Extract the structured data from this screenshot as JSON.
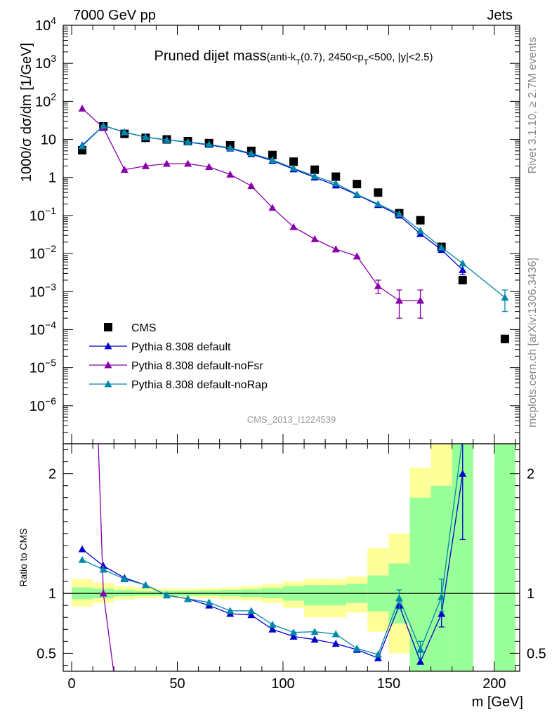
{
  "header": {
    "left": "7000 GeV pp",
    "right": "Jets"
  },
  "side_labels": {
    "rivet": "Rivet 3.1.10, ≥ 2.7M events",
    "mcplots": "mcplots.cern.ch [arXiv:1306.3436]"
  },
  "watermark": "CMS_2013_I1224539",
  "colors": {
    "cms": "#000000",
    "default": "#0000cc",
    "noFsr": "#8800aa",
    "noRap": "#0088aa",
    "band_yellow": "#ffff99",
    "band_green": "#99ff99"
  },
  "chart_data": [
    {
      "type": "scatter",
      "title": "Pruned dijet mass",
      "title_sub": "(anti-k",
      "title_sub_T1": "T",
      "title_sub_mid": "(0.7), 2450<p",
      "title_sub_T2": "T",
      "title_sub_end": "<500, |y|<2.5)",
      "ylabel": "1000/σ dσ/dm [1/GeV]",
      "yscale": "log",
      "ylim": [
        1e-07,
        10000.0
      ],
      "xlim": [
        -4,
        212
      ],
      "y_ticks": [
        {
          "v": 10000.0,
          "label": "10",
          "exp": "4"
        },
        {
          "v": 1000.0,
          "label": "10",
          "exp": "3"
        },
        {
          "v": 100.0,
          "label": "10",
          "exp": "2"
        },
        {
          "v": 10,
          "label": "10",
          "exp": ""
        },
        {
          "v": 1,
          "label": "1",
          "exp": ""
        },
        {
          "v": 0.1,
          "label": "10",
          "exp": "−1"
        },
        {
          "v": 0.01,
          "label": "10",
          "exp": "−2"
        },
        {
          "v": 0.001,
          "label": "10",
          "exp": "−3"
        },
        {
          "v": 0.0001,
          "label": "10",
          "exp": "−4"
        },
        {
          "v": 1e-05,
          "label": "10",
          "exp": "−5"
        },
        {
          "v": 1e-06,
          "label": "10",
          "exp": "−6"
        }
      ],
      "legend": [
        {
          "name": "CMS",
          "marker": "square",
          "color": "#000000"
        },
        {
          "name": "Pythia 8.308 default",
          "marker": "triangle",
          "color": "#0000cc"
        },
        {
          "name": "Pythia 8.308 default-noFsr",
          "marker": "triangle",
          "color": "#8800aa"
        },
        {
          "name": "Pythia 8.308 default-noRap",
          "marker": "triangle",
          "color": "#0088aa"
        }
      ],
      "series": [
        {
          "name": "CMS",
          "style": "square",
          "color": "#000000",
          "points": [
            [
              5,
              5.2
            ],
            [
              15,
              22
            ],
            [
              25,
              14
            ],
            [
              35,
              11
            ],
            [
              45,
              10
            ],
            [
              55,
              9
            ],
            [
              65,
              8
            ],
            [
              75,
              7
            ],
            [
              85,
              5
            ],
            [
              95,
              3.9
            ],
            [
              105,
              2.6
            ],
            [
              115,
              1.6
            ],
            [
              125,
              1.05
            ],
            [
              135,
              0.67
            ],
            [
              145,
              0.4
            ],
            [
              155,
              0.115
            ],
            [
              165,
              0.075
            ],
            [
              175,
              0.015
            ],
            [
              185,
              0.002
            ],
            [
              205,
              5.7e-05
            ]
          ]
        },
        {
          "name": "Pythia 8.308 default",
          "style": "triangle",
          "color": "#0000cc",
          "points": [
            [
              5,
              7
            ],
            [
              15,
              23
            ],
            [
              25,
              15.5
            ],
            [
              35,
              11.5
            ],
            [
              45,
              9.7
            ],
            [
              55,
              8.5
            ],
            [
              65,
              7.2
            ],
            [
              75,
              5.8
            ],
            [
              85,
              4.1
            ],
            [
              95,
              2.75
            ],
            [
              105,
              1.65
            ],
            [
              115,
              1.0
            ],
            [
              125,
              0.62
            ],
            [
              135,
              0.35
            ],
            [
              145,
              0.19
            ],
            [
              155,
              0.1
            ],
            [
              165,
              0.033
            ],
            [
              175,
              0.0125
            ],
            [
              185,
              0.0037
            ]
          ],
          "errors": [
            [
              185,
              0.0028,
              0.0047
            ]
          ]
        },
        {
          "name": "Pythia 8.308 default-noFsr",
          "style": "triangle",
          "color": "#8800aa",
          "points": [
            [
              5,
              65
            ],
            [
              15,
              20
            ],
            [
              25,
              1.6
            ],
            [
              35,
              2.0
            ],
            [
              45,
              2.3
            ],
            [
              55,
              2.3
            ],
            [
              65,
              1.9
            ],
            [
              75,
              1.2
            ],
            [
              85,
              0.6
            ],
            [
              95,
              0.16
            ],
            [
              105,
              0.05
            ],
            [
              115,
              0.024
            ],
            [
              125,
              0.013
            ],
            [
              135,
              0.0085
            ],
            [
              145,
              0.0014
            ],
            [
              155,
              0.00058
            ],
            [
              165,
              0.00058
            ]
          ],
          "errors": [
            [
              145,
              0.0009,
              0.002
            ],
            [
              155,
              0.0002,
              0.0011
            ],
            [
              165,
              0.0002,
              0.0011
            ]
          ]
        },
        {
          "name": "Pythia 8.308 default-noRap",
          "style": "triangle",
          "color": "#0088aa",
          "points": [
            [
              5,
              6.7
            ],
            [
              15,
              23
            ],
            [
              25,
              15.5
            ],
            [
              35,
              11.5
            ],
            [
              45,
              9.7
            ],
            [
              55,
              8.6
            ],
            [
              65,
              7.4
            ],
            [
              75,
              6.0
            ],
            [
              85,
              4.3
            ],
            [
              95,
              2.9
            ],
            [
              105,
              1.75
            ],
            [
              115,
              1.08
            ],
            [
              125,
              0.7
            ],
            [
              135,
              0.36
            ],
            [
              145,
              0.2
            ],
            [
              155,
              0.11
            ],
            [
              165,
              0.04
            ],
            [
              175,
              0.0145
            ],
            [
              185,
              0.0055
            ],
            [
              205,
              0.0007
            ]
          ],
          "errors": [
            [
              205,
              0.0003,
              0.0011
            ]
          ]
        }
      ]
    },
    {
      "type": "line",
      "ylabel": "Ratio to CMS",
      "xlabel": "m [GeV]",
      "ylim": [
        0.35,
        2.25
      ],
      "xlim": [
        -4,
        212
      ],
      "x_ticks": [
        0,
        50,
        100,
        150,
        200
      ],
      "y_ticks": [
        0.5,
        1,
        2
      ],
      "bands": [
        {
          "x0": 0,
          "x1": 10,
          "y_lo": 0.89,
          "y_hi": 1.12,
          "g_lo": 0.95,
          "g_hi": 1.05
        },
        {
          "x0": 10,
          "x1": 20,
          "y_lo": 0.92,
          "y_hi": 1.09,
          "g_lo": 0.96,
          "g_hi": 1.04
        },
        {
          "x0": 20,
          "x1": 30,
          "y_lo": 0.95,
          "y_hi": 1.06,
          "g_lo": 0.975,
          "g_hi": 1.03
        },
        {
          "x0": 30,
          "x1": 40,
          "y_lo": 0.96,
          "y_hi": 1.05,
          "g_lo": 0.98,
          "g_hi": 1.02
        },
        {
          "x0": 40,
          "x1": 50,
          "y_lo": 0.965,
          "y_hi": 1.04,
          "g_lo": 0.98,
          "g_hi": 1.02
        },
        {
          "x0": 50,
          "x1": 60,
          "y_lo": 0.965,
          "y_hi": 1.04,
          "g_lo": 0.98,
          "g_hi": 1.02
        },
        {
          "x0": 60,
          "x1": 70,
          "y_lo": 0.96,
          "y_hi": 1.045,
          "g_lo": 0.98,
          "g_hi": 1.025
        },
        {
          "x0": 70,
          "x1": 80,
          "y_lo": 0.95,
          "y_hi": 1.05,
          "g_lo": 0.975,
          "g_hi": 1.03
        },
        {
          "x0": 80,
          "x1": 90,
          "y_lo": 0.94,
          "y_hi": 1.06,
          "g_lo": 0.97,
          "g_hi": 1.035
        },
        {
          "x0": 90,
          "x1": 100,
          "y_lo": 0.92,
          "y_hi": 1.08,
          "g_lo": 0.96,
          "g_hi": 1.045
        },
        {
          "x0": 100,
          "x1": 110,
          "y_lo": 0.88,
          "y_hi": 1.1,
          "g_lo": 0.94,
          "g_hi": 1.06
        },
        {
          "x0": 110,
          "x1": 120,
          "y_lo": 0.8,
          "y_hi": 1.12,
          "g_lo": 0.9,
          "g_hi": 1.07
        },
        {
          "x0": 120,
          "x1": 130,
          "y_lo": 0.8,
          "y_hi": 1.12,
          "g_lo": 0.9,
          "g_hi": 1.07
        },
        {
          "x0": 130,
          "x1": 140,
          "y_lo": 0.84,
          "y_hi": 1.14,
          "g_lo": 0.92,
          "g_hi": 1.08
        },
        {
          "x0": 140,
          "x1": 150,
          "y_lo": 0.68,
          "y_hi": 1.38,
          "g_lo": 0.85,
          "g_hi": 1.15
        },
        {
          "x0": 150,
          "x1": 160,
          "y_lo": 0.5,
          "y_hi": 1.5,
          "g_lo": 0.75,
          "g_hi": 1.25
        },
        {
          "x0": 160,
          "x1": 170,
          "y_lo": 0.3,
          "y_hi": 2.05,
          "g_lo": 0.3,
          "g_hi": 1.8
        },
        {
          "x0": 170,
          "x1": 180,
          "y_lo": 0.3,
          "y_hi": 2.3,
          "g_lo": 0.3,
          "g_hi": 1.9
        },
        {
          "x0": 180,
          "x1": 190,
          "y_lo": 0.3,
          "y_hi": 2.3,
          "g_lo": 0.3,
          "g_hi": 2.3
        },
        {
          "x0": 200,
          "x1": 210,
          "y_lo": 0.3,
          "y_hi": 2.3,
          "g_lo": 0.3,
          "g_hi": 2.3
        }
      ],
      "series": [
        {
          "name": "Pythia 8.308 default",
          "color": "#0000cc",
          "points": [
            [
              5,
              1.37
            ],
            [
              15,
              1.23
            ],
            [
              25,
              1.13
            ],
            [
              35,
              1.07
            ],
            [
              45,
              0.985
            ],
            [
              55,
              0.955
            ],
            [
              65,
              0.9
            ],
            [
              75,
              0.83
            ],
            [
              85,
              0.82
            ],
            [
              95,
              0.7
            ],
            [
              105,
              0.64
            ],
            [
              115,
              0.615
            ],
            [
              125,
              0.58
            ],
            [
              135,
              0.53
            ],
            [
              145,
              0.46
            ],
            [
              155,
              0.9
            ],
            [
              165,
              0.43
            ],
            [
              175,
              0.83
            ],
            [
              185,
              2.0
            ]
          ],
          "errors": [
            [
              185,
              1.45,
              2.6
            ],
            [
              175,
              0.72,
              0.95
            ]
          ]
        },
        {
          "name": "Pythia 8.308 default-noFsr",
          "color": "#8800aa",
          "points": [
            [
              12.5,
              2.3
            ],
            [
              15,
              1.0
            ],
            [
              20,
              0.33
            ]
          ]
        },
        {
          "name": "Pythia 8.308 default-noRap",
          "color": "#0088aa",
          "points": [
            [
              5,
              1.28
            ],
            [
              15,
              1.2
            ],
            [
              25,
              1.12
            ],
            [
              35,
              1.07
            ],
            [
              45,
              0.985
            ],
            [
              55,
              0.955
            ],
            [
              65,
              0.925
            ],
            [
              75,
              0.855
            ],
            [
              85,
              0.855
            ],
            [
              95,
              0.74
            ],
            [
              105,
              0.675
            ],
            [
              115,
              0.68
            ],
            [
              125,
              0.66
            ],
            [
              135,
              0.54
            ],
            [
              145,
              0.49
            ],
            [
              155,
              0.96
            ],
            [
              165,
              0.53
            ],
            [
              175,
              0.97
            ],
            [
              185,
              2.3
            ]
          ],
          "errors": [
            [
              175,
              0.85,
              1.12
            ],
            [
              165,
              0.46,
              0.6
            ],
            [
              155,
              0.87,
              1.03
            ]
          ]
        }
      ]
    }
  ]
}
